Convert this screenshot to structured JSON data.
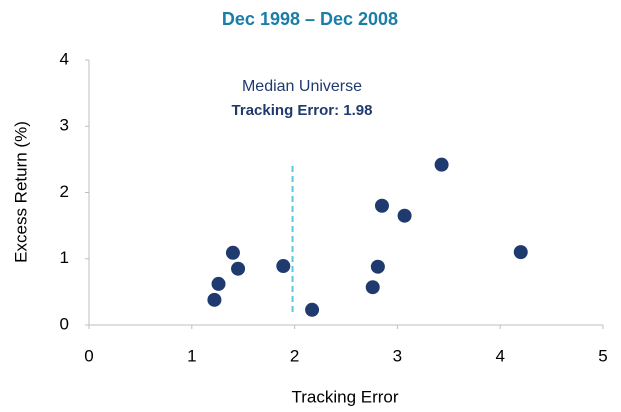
{
  "chart_data": {
    "type": "scatter",
    "title": "Dec 1998 – Dec 2008",
    "x_label": "Tracking Error",
    "y_label": "Excess Return (%)",
    "annotations": [
      "Median Universe",
      "Tracking Error: 1.98"
    ],
    "median_x": 1.98,
    "x": [
      1.22,
      1.26,
      1.4,
      1.45,
      1.89,
      2.17,
      2.76,
      2.81,
      2.85,
      3.07,
      3.43,
      4.2
    ],
    "values": [
      0.38,
      0.62,
      1.09,
      0.85,
      0.89,
      0.23,
      0.57,
      0.88,
      1.8,
      1.65,
      2.42,
      1.1
    ],
    "color": "#1f3a6e",
    "title_color": "#1a7ea6",
    "median_color": "#5bc8e0",
    "xlim": [
      0,
      5
    ],
    "xticks": [
      0,
      1,
      2,
      3,
      4,
      5
    ],
    "ylim": [
      0,
      4
    ],
    "yticks": [
      0,
      1,
      2,
      3,
      4
    ],
    "grid": false
  }
}
